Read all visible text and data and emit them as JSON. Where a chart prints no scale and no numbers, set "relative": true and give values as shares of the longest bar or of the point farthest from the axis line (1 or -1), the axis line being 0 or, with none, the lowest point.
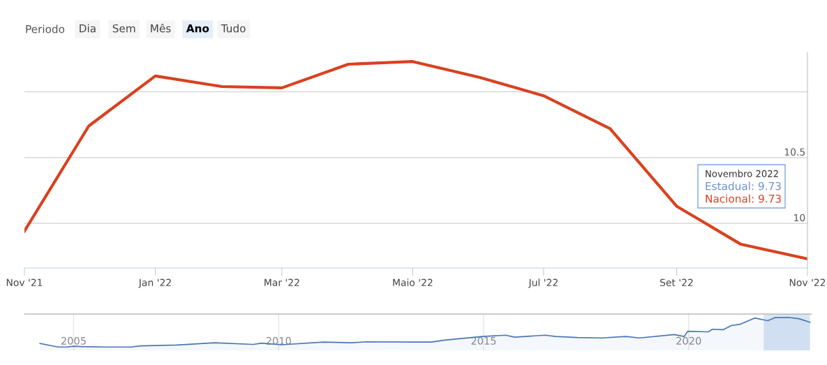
{
  "chart_data": [
    {
      "type": "line",
      "x": [
        "2021-11",
        "2021-12",
        "2022-01",
        "2022-02",
        "2022-03",
        "2022-04",
        "2022-05",
        "2022-06",
        "2022-07",
        "2022-08",
        "2022-09",
        "2022-10",
        "2022-11"
      ],
      "series": [
        {
          "color": "#d9411e",
          "values": [
            9.94,
            10.74,
            11.12,
            11.04,
            11.03,
            11.21,
            11.23,
            11.11,
            10.97,
            10.72,
            10.13,
            9.84,
            9.73
          ]
        }
      ],
      "xlim": [
        "2021-11",
        "2022-11"
      ],
      "xticks": [
        {
          "value": "2021-11",
          "label": "Nov '21"
        },
        {
          "value": "2022-01",
          "label": "Jan '22"
        },
        {
          "value": "2022-03",
          "label": "Mar '22"
        },
        {
          "value": "2022-05",
          "label": "Maio '22"
        },
        {
          "value": "2022-07",
          "label": "Jul '22"
        },
        {
          "value": "2022-09",
          "label": "Set '22"
        },
        {
          "value": "2022-11",
          "label": "Nov '22"
        }
      ],
      "ylim": [
        9.66,
        11.3
      ],
      "yticks": [
        10,
        10.5,
        {
          "value": 11,
          "label": null
        }
      ],
      "grid": "y",
      "legend": false,
      "marker": "none",
      "line_style": "solid",
      "annotations": [
        "Periodo",
        "Dia",
        "Sem",
        "Mês",
        "Ano",
        "Tudo",
        "Novembro 2022",
        "Estadual: 9.73",
        "Nacional: 9.73"
      ]
    },
    {
      "type": "area",
      "relative": true,
      "x": [
        2004.18,
        2004.62,
        2004.85,
        2005.0,
        2005.19,
        2005.79,
        2006.39,
        2006.64,
        2007.5,
        2008.44,
        2009.38,
        2009.59,
        2010.07,
        2011.1,
        2011.78,
        2012.13,
        2013.33,
        2013.72,
        2014.05,
        2014.97,
        2015.54,
        2015.76,
        2016.5,
        2016.76,
        2017.29,
        2017.87,
        2018.47,
        2018.8,
        2019.65,
        2019.89,
        2019.98,
        2020.48,
        2020.58,
        2020.84,
        2021.04,
        2021.25,
        2021.61,
        2021.93,
        2022.1,
        2022.43,
        2022.69,
        2022.96
      ],
      "series": [
        {
          "color": "#4a75b5",
          "values": [
            0.21,
            0.1,
            0.1,
            0.125,
            0.115,
            0.1,
            0.1,
            0.135,
            0.16,
            0.23,
            0.18,
            0.22,
            0.17,
            0.25,
            0.23,
            0.26,
            0.25,
            0.25,
            0.31,
            0.42,
            0.46,
            0.4,
            0.46,
            0.42,
            0.39,
            0.375,
            0.42,
            0.375,
            0.48,
            0.42,
            0.58,
            0.56,
            0.64,
            0.625,
            0.75,
            0.79,
            0.98,
            0.9,
            0.99,
            1.0,
            0.96,
            0.85
          ]
        }
      ],
      "xlim": [
        2003.8,
        2023.0
      ],
      "xticks": [
        2005,
        2010,
        2015,
        2020
      ],
      "grid": "x",
      "bands": [
        {
          "axis": "x",
          "from": 2021.83,
          "to": 2022.96,
          "color": "#cfe0f3"
        }
      ]
    }
  ]
}
